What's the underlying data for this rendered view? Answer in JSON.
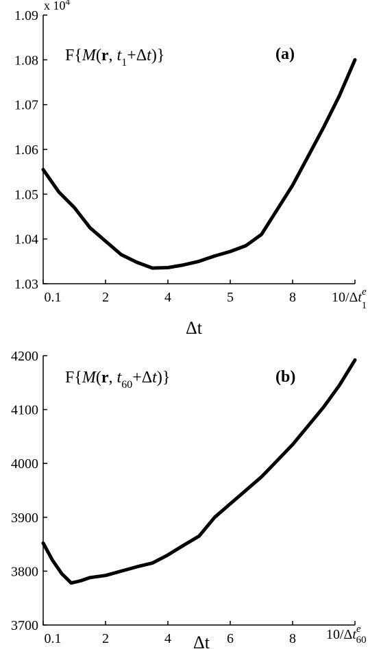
{
  "chart_data": [
    {
      "id": "a",
      "type": "line",
      "panel_label": "(a)",
      "title": "F{M(r, t1+Δt)}",
      "xlabel": "Δt",
      "x_tick_labels": [
        "0.1",
        "2",
        "4",
        "5",
        "8",
        "10/Δt1e"
      ],
      "y_multiplier": "x 10^4",
      "y_tick_labels": [
        "1.03",
        "1.04",
        "1.05",
        "1.06",
        "1.07",
        "1.08",
        "1.09"
      ],
      "ylim": [
        1.03,
        1.09
      ],
      "xlim": [
        0,
        10
      ],
      "grid": false,
      "x": [
        0,
        0.5,
        1.0,
        1.5,
        2.0,
        2.5,
        3.0,
        3.5,
        4.0,
        4.5,
        5.0,
        5.5,
        6.0,
        6.5,
        7.0,
        7.5,
        8.0,
        8.5,
        9.0,
        9.5,
        10.0
      ],
      "values": [
        1.0555,
        1.0505,
        1.047,
        1.0425,
        1.0395,
        1.0365,
        1.0348,
        1.0335,
        1.0336,
        1.0342,
        1.035,
        1.0362,
        1.0372,
        1.0385,
        1.041,
        1.0465,
        1.052,
        1.0585,
        1.065,
        1.072,
        1.08
      ]
    },
    {
      "id": "b",
      "type": "line",
      "panel_label": "(b)",
      "title": "F{M(r, t60+Δt)}",
      "xlabel": "Δt",
      "x_tick_labels": [
        "0.1",
        "2",
        "4",
        "6",
        "8",
        "10/Δt60e"
      ],
      "y_tick_labels": [
        "3700",
        "3800",
        "3900",
        "4000",
        "4100",
        "4200"
      ],
      "ylim": [
        3700,
        4200
      ],
      "xlim": [
        0,
        10
      ],
      "grid": false,
      "x": [
        0,
        0.3,
        0.6,
        0.9,
        1.2,
        1.5,
        2.0,
        2.5,
        3.0,
        3.5,
        4.0,
        4.5,
        5.0,
        5.5,
        6.0,
        6.5,
        7.0,
        7.5,
        8.0,
        8.5,
        9.0,
        9.5,
        10.0
      ],
      "values": [
        3852,
        3820,
        3795,
        3778,
        3782,
        3788,
        3792,
        3800,
        3808,
        3815,
        3830,
        3848,
        3865,
        3900,
        3925,
        3950,
        3975,
        4005,
        4035,
        4070,
        4105,
        4145,
        4192
      ]
    }
  ],
  "text": {
    "a": {
      "title_prefix": "F{",
      "title_M": "M",
      "title_open": "(",
      "title_r": "r",
      "title_comma": ", ",
      "title_t": "t",
      "title_sub": "1",
      "title_plus": "+Δ",
      "title_t2": "t",
      "title_close": ")}",
      "panel": "(a)",
      "mult_base": "x 10",
      "mult_exp": "4",
      "xlabel": "Δt",
      "xend_main": "10/Δ",
      "xend_t": "t",
      "xend_sup": "e",
      "xend_sub": "1"
    },
    "b": {
      "title_prefix": "F{",
      "title_M": "M",
      "title_open": "(",
      "title_r": "r",
      "title_comma": ", ",
      "title_t": "t",
      "title_sub": "60",
      "title_plus": "+Δ",
      "title_t2": "t",
      "title_close": ")}",
      "panel": "(b)",
      "xlabel": "Δt",
      "xend_main": "10/Δ",
      "xend_t": "t",
      "xend_sup": "e",
      "xend_sub": "60"
    }
  }
}
